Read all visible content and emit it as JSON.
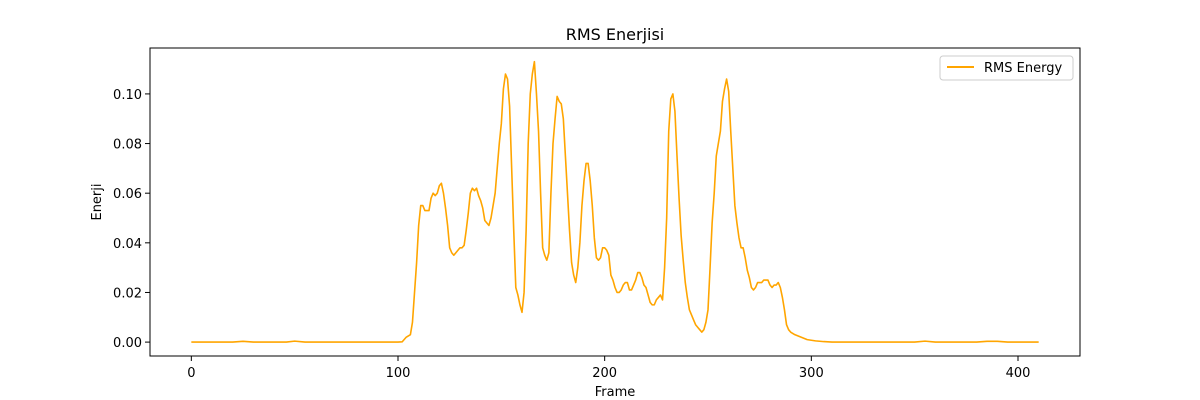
{
  "chart_data": {
    "type": "line",
    "title": "RMS Enerjisi",
    "xlabel": "Frame",
    "ylabel": "Enerji",
    "xlim": [
      -20,
      430
    ],
    "ylim": [
      -0.0056,
      0.1185
    ],
    "xticks": [
      0,
      100,
      200,
      300,
      400
    ],
    "yticks": [
      0.0,
      0.02,
      0.04,
      0.06,
      0.08,
      0.1
    ],
    "ytick_labels": [
      "0.00",
      "0.02",
      "0.04",
      "0.06",
      "0.08",
      "0.10"
    ],
    "legend_position": "top-right",
    "grid": false,
    "series": [
      {
        "name": "RMS Energy",
        "color": "#ffa500",
        "points": [
          [
            0,
            0.0
          ],
          [
            10,
            0.0
          ],
          [
            20,
            0.0
          ],
          [
            25,
            0.0003
          ],
          [
            30,
            0.0
          ],
          [
            40,
            0.0
          ],
          [
            46,
            0.0
          ],
          [
            50,
            0.0004
          ],
          [
            55,
            0.0
          ],
          [
            60,
            0.0
          ],
          [
            70,
            0.0
          ],
          [
            80,
            0.0
          ],
          [
            90,
            0.0
          ],
          [
            100,
            0.0
          ],
          [
            102,
            0.0001
          ],
          [
            104,
            0.002
          ],
          [
            106,
            0.003
          ],
          [
            107,
            0.008
          ],
          [
            108,
            0.02
          ],
          [
            109,
            0.032
          ],
          [
            110,
            0.047
          ],
          [
            111,
            0.055
          ],
          [
            112,
            0.055
          ],
          [
            113,
            0.053
          ],
          [
            114,
            0.053
          ],
          [
            115,
            0.053
          ],
          [
            116,
            0.058
          ],
          [
            117,
            0.06
          ],
          [
            118,
            0.059
          ],
          [
            119,
            0.06
          ],
          [
            120,
            0.063
          ],
          [
            121,
            0.064
          ],
          [
            122,
            0.06
          ],
          [
            123,
            0.054
          ],
          [
            124,
            0.047
          ],
          [
            125,
            0.038
          ],
          [
            126,
            0.036
          ],
          [
            127,
            0.035
          ],
          [
            128,
            0.036
          ],
          [
            129,
            0.037
          ],
          [
            130,
            0.038
          ],
          [
            131,
            0.038
          ],
          [
            132,
            0.039
          ],
          [
            133,
            0.045
          ],
          [
            134,
            0.052
          ],
          [
            135,
            0.06
          ],
          [
            136,
            0.062
          ],
          [
            137,
            0.061
          ],
          [
            138,
            0.062
          ],
          [
            139,
            0.059
          ],
          [
            140,
            0.057
          ],
          [
            141,
            0.054
          ],
          [
            142,
            0.049
          ],
          [
            143,
            0.048
          ],
          [
            144,
            0.047
          ],
          [
            145,
            0.05
          ],
          [
            146,
            0.055
          ],
          [
            147,
            0.06
          ],
          [
            148,
            0.07
          ],
          [
            149,
            0.08
          ],
          [
            150,
            0.088
          ],
          [
            151,
            0.102
          ],
          [
            152,
            0.108
          ],
          [
            153,
            0.106
          ],
          [
            154,
            0.095
          ],
          [
            155,
            0.07
          ],
          [
            156,
            0.045
          ],
          [
            157,
            0.022
          ],
          [
            158,
            0.019
          ],
          [
            159,
            0.015
          ],
          [
            160,
            0.012
          ],
          [
            161,
            0.02
          ],
          [
            162,
            0.045
          ],
          [
            163,
            0.08
          ],
          [
            164,
            0.1
          ],
          [
            165,
            0.108
          ],
          [
            166,
            0.113
          ],
          [
            167,
            0.1
          ],
          [
            168,
            0.085
          ],
          [
            169,
            0.06
          ],
          [
            170,
            0.038
          ],
          [
            171,
            0.035
          ],
          [
            172,
            0.033
          ],
          [
            173,
            0.036
          ],
          [
            174,
            0.06
          ],
          [
            175,
            0.08
          ],
          [
            176,
            0.09
          ],
          [
            177,
            0.099
          ],
          [
            178,
            0.097
          ],
          [
            179,
            0.096
          ],
          [
            180,
            0.09
          ],
          [
            181,
            0.075
          ],
          [
            182,
            0.06
          ],
          [
            183,
            0.045
          ],
          [
            184,
            0.032
          ],
          [
            185,
            0.027
          ],
          [
            186,
            0.024
          ],
          [
            187,
            0.03
          ],
          [
            188,
            0.04
          ],
          [
            189,
            0.055
          ],
          [
            190,
            0.065
          ],
          [
            191,
            0.072
          ],
          [
            192,
            0.072
          ],
          [
            193,
            0.065
          ],
          [
            194,
            0.055
          ],
          [
            195,
            0.042
          ],
          [
            196,
            0.034
          ],
          [
            197,
            0.033
          ],
          [
            198,
            0.034
          ],
          [
            199,
            0.038
          ],
          [
            200,
            0.038
          ],
          [
            201,
            0.037
          ],
          [
            202,
            0.035
          ],
          [
            203,
            0.027
          ],
          [
            204,
            0.025
          ],
          [
            205,
            0.022
          ],
          [
            206,
            0.02
          ],
          [
            207,
            0.02
          ],
          [
            208,
            0.021
          ],
          [
            209,
            0.023
          ],
          [
            210,
            0.024
          ],
          [
            211,
            0.024
          ],
          [
            212,
            0.021
          ],
          [
            213,
            0.021
          ],
          [
            214,
            0.023
          ],
          [
            215,
            0.025
          ],
          [
            216,
            0.028
          ],
          [
            217,
            0.028
          ],
          [
            218,
            0.026
          ],
          [
            219,
            0.023
          ],
          [
            220,
            0.022
          ],
          [
            221,
            0.019
          ],
          [
            222,
            0.016
          ],
          [
            223,
            0.015
          ],
          [
            224,
            0.015
          ],
          [
            225,
            0.017
          ],
          [
            226,
            0.018
          ],
          [
            227,
            0.019
          ],
          [
            228,
            0.017
          ],
          [
            229,
            0.03
          ],
          [
            230,
            0.05
          ],
          [
            231,
            0.085
          ],
          [
            232,
            0.098
          ],
          [
            233,
            0.1
          ],
          [
            234,
            0.093
          ],
          [
            235,
            0.075
          ],
          [
            236,
            0.058
          ],
          [
            237,
            0.043
          ],
          [
            238,
            0.033
          ],
          [
            239,
            0.024
          ],
          [
            240,
            0.018
          ],
          [
            241,
            0.013
          ],
          [
            242,
            0.011
          ],
          [
            243,
            0.009
          ],
          [
            244,
            0.007
          ],
          [
            245,
            0.006
          ],
          [
            246,
            0.005
          ],
          [
            247,
            0.004
          ],
          [
            248,
            0.005
          ],
          [
            249,
            0.008
          ],
          [
            250,
            0.013
          ],
          [
            251,
            0.03
          ],
          [
            252,
            0.048
          ],
          [
            253,
            0.06
          ],
          [
            254,
            0.075
          ],
          [
            255,
            0.08
          ],
          [
            256,
            0.085
          ],
          [
            257,
            0.097
          ],
          [
            258,
            0.102
          ],
          [
            259,
            0.106
          ],
          [
            260,
            0.101
          ],
          [
            261,
            0.085
          ],
          [
            262,
            0.07
          ],
          [
            263,
            0.055
          ],
          [
            264,
            0.048
          ],
          [
            265,
            0.042
          ],
          [
            266,
            0.038
          ],
          [
            267,
            0.038
          ],
          [
            268,
            0.034
          ],
          [
            269,
            0.029
          ],
          [
            270,
            0.026
          ],
          [
            271,
            0.022
          ],
          [
            272,
            0.021
          ],
          [
            273,
            0.022
          ],
          [
            274,
            0.024
          ],
          [
            275,
            0.024
          ],
          [
            276,
            0.024
          ],
          [
            277,
            0.025
          ],
          [
            278,
            0.025
          ],
          [
            279,
            0.025
          ],
          [
            280,
            0.023
          ],
          [
            281,
            0.022
          ],
          [
            282,
            0.023
          ],
          [
            283,
            0.023
          ],
          [
            284,
            0.024
          ],
          [
            285,
            0.022
          ],
          [
            286,
            0.018
          ],
          [
            287,
            0.013
          ],
          [
            288,
            0.007
          ],
          [
            289,
            0.005
          ],
          [
            290,
            0.004
          ],
          [
            292,
            0.003
          ],
          [
            295,
            0.002
          ],
          [
            298,
            0.001
          ],
          [
            302,
            0.0005
          ],
          [
            306,
            0.0002
          ],
          [
            310,
            0.0
          ],
          [
            320,
            0.0
          ],
          [
            330,
            0.0
          ],
          [
            340,
            0.0
          ],
          [
            350,
            0.0
          ],
          [
            355,
            0.0004
          ],
          [
            360,
            0.0
          ],
          [
            370,
            0.0
          ],
          [
            380,
            0.0
          ],
          [
            385,
            0.0003
          ],
          [
            390,
            0.0003
          ],
          [
            395,
            0.0
          ],
          [
            400,
            0.0
          ],
          [
            405,
            0.0
          ],
          [
            410,
            0.0
          ]
        ]
      }
    ]
  }
}
